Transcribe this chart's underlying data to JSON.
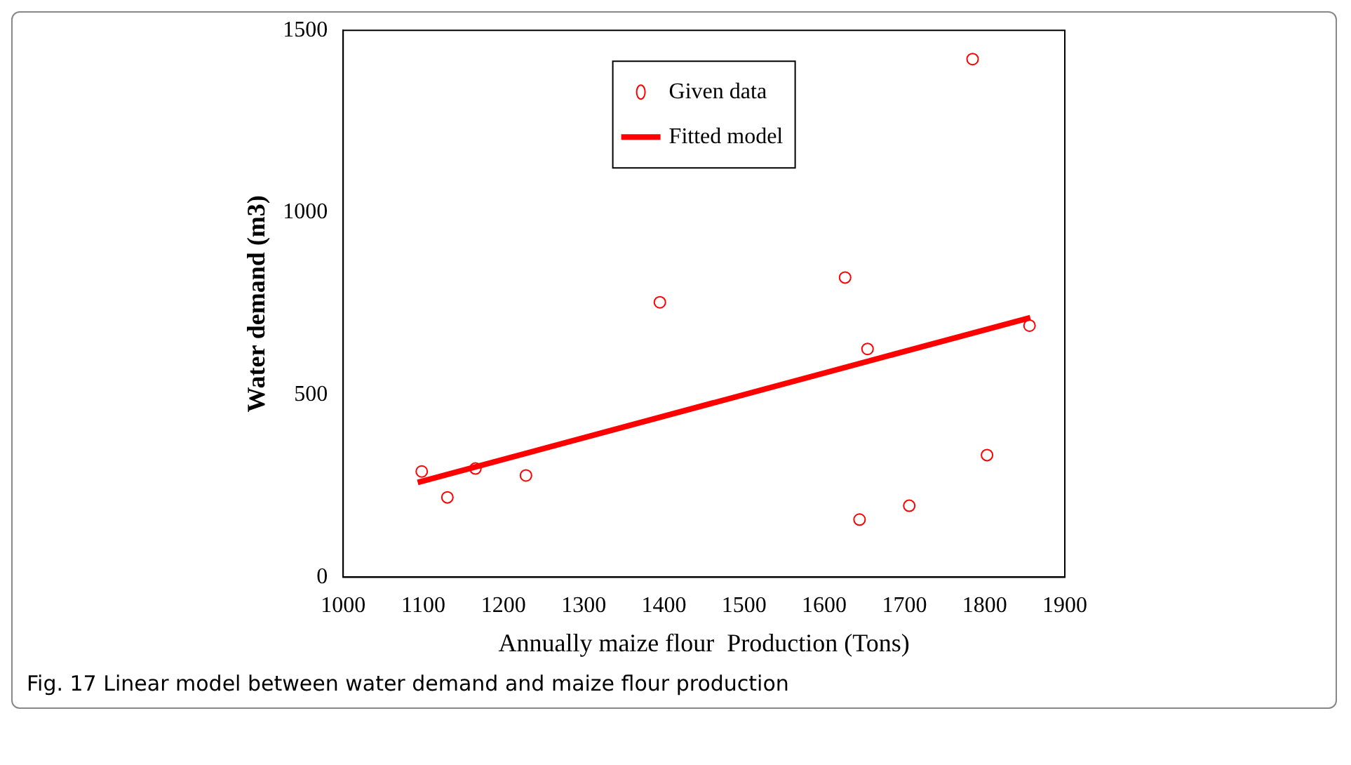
{
  "chart_data": {
    "type": "scatter",
    "xlabel": "Annually maize flour  Production (Tons)",
    "ylabel": "Water demand (m3)",
    "xlim": [
      1000,
      1900
    ],
    "xticks": [
      1000,
      1100,
      1200,
      1300,
      1400,
      1500,
      1600,
      1700,
      1800,
      1900
    ],
    "ylim": [
      0,
      1500
    ],
    "yticks": [
      0,
      500,
      1000,
      1500
    ],
    "grid": false,
    "legend": "top",
    "series": [
      {
        "name": "Given data",
        "color": "#ff0000",
        "marker": "circle",
        "x": [
          1098,
          1130,
          1165,
          1228,
          1395,
          1626,
          1654,
          1644,
          1706,
          1785,
          1803,
          1856
        ],
        "values": [
          290,
          219,
          298,
          279,
          754,
          822,
          626,
          158,
          196,
          1421,
          335,
          690
        ]
      },
      {
        "name": "Fitted model",
        "type": "line",
        "color": "#ff0000",
        "marker": "none",
        "line_style": "solid",
        "x": [
          1093,
          1857
        ],
        "values": [
          260,
          712
        ]
      }
    ],
    "annotations": [
      "Fig. 17 Linear model between water demand and maize flour production"
    ]
  }
}
